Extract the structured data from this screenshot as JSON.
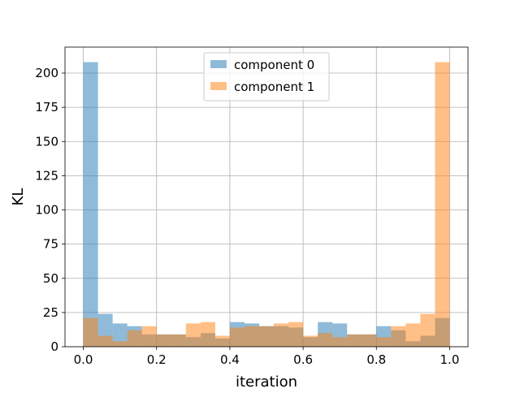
{
  "chart_data": {
    "type": "bar",
    "title": "",
    "xlabel": "iteration",
    "ylabel": "KL",
    "xlim": [
      -0.05,
      1.05
    ],
    "ylim": [
      0,
      219
    ],
    "grid": true,
    "legend_position": "top-center",
    "bin_edges": [
      0.0,
      0.04,
      0.08,
      0.12,
      0.16,
      0.2,
      0.24,
      0.28,
      0.32,
      0.36,
      0.4,
      0.44,
      0.48,
      0.52,
      0.56,
      0.6,
      0.64,
      0.68,
      0.72,
      0.76,
      0.8,
      0.84,
      0.88,
      0.92,
      0.96,
      1.0
    ],
    "x_ticks": [
      {
        "value": 0.0,
        "label": "0.0"
      },
      {
        "value": 0.2,
        "label": "0.2"
      },
      {
        "value": 0.4,
        "label": "0.4"
      },
      {
        "value": 0.6,
        "label": "0.6"
      },
      {
        "value": 0.8,
        "label": "0.8"
      },
      {
        "value": 1.0,
        "label": "1.0"
      }
    ],
    "y_ticks": [
      {
        "value": 0,
        "label": "0"
      },
      {
        "value": 25,
        "label": "25"
      },
      {
        "value": 50,
        "label": "50"
      },
      {
        "value": 75,
        "label": "75"
      },
      {
        "value": 100,
        "label": "100"
      },
      {
        "value": 125,
        "label": "125"
      },
      {
        "value": 150,
        "label": "150"
      },
      {
        "value": 175,
        "label": "175"
      },
      {
        "value": 200,
        "label": "200"
      }
    ],
    "series": [
      {
        "name": "component 0",
        "color": "#1f77b4",
        "opacity": 0.5,
        "values": [
          208,
          24,
          17,
          15,
          9,
          9,
          9,
          7,
          10,
          6,
          18,
          17,
          15,
          15,
          14,
          7,
          18,
          17,
          9,
          9,
          15,
          12,
          4,
          8,
          21
        ]
      },
      {
        "name": "component 1",
        "color": "#ff7f0e",
        "opacity": 0.5,
        "values": [
          21,
          8,
          4,
          12,
          15,
          9,
          9,
          17,
          18,
          8,
          14,
          15,
          15,
          17,
          18,
          8,
          10,
          7,
          9,
          9,
          7,
          15,
          17,
          24,
          208
        ]
      }
    ]
  }
}
